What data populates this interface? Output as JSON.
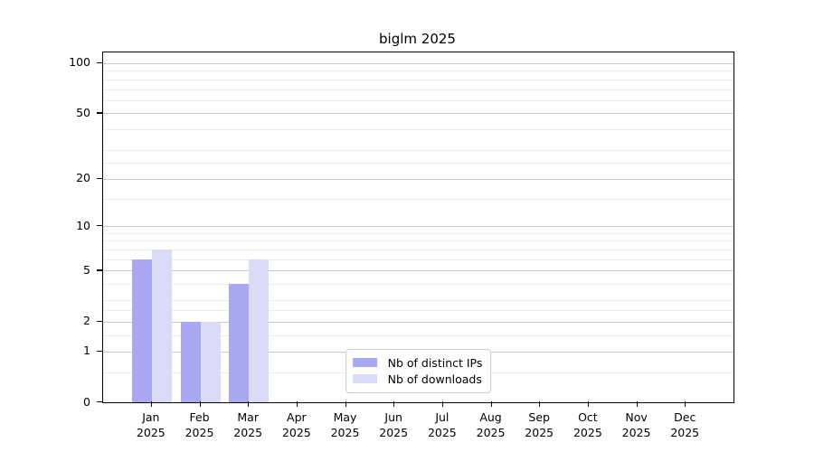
{
  "chart_data": {
    "type": "bar",
    "title": "biglm 2025",
    "scale": "log(x+1)",
    "grid": "horizontal",
    "legend_position": "bottom-center",
    "categories": [
      "Jan",
      "Feb",
      "Mar",
      "Apr",
      "May",
      "Jun",
      "Jul",
      "Aug",
      "Sep",
      "Oct",
      "Nov",
      "Dec"
    ],
    "year_label": "2025",
    "series": [
      {
        "name": "Nb of distinct IPs",
        "color": "#a8a8f2",
        "values": [
          6,
          2,
          4,
          0,
          0,
          0,
          0,
          0,
          0,
          0,
          0,
          0
        ]
      },
      {
        "name": "Nb of downloads",
        "color": "#dbdbf8",
        "values": [
          7,
          2,
          6,
          0,
          0,
          0,
          0,
          0,
          0,
          0,
          0,
          0
        ]
      }
    ],
    "y_ticks": [
      0,
      1,
      2,
      5,
      10,
      20,
      50,
      100
    ],
    "y_minor_gridlines": [
      0.5,
      1.5,
      2.5,
      3,
      4,
      6,
      7,
      8,
      9,
      15,
      25,
      30,
      40,
      60,
      70,
      80,
      90
    ],
    "ylim": [
      0,
      116
    ],
    "axis_color": "#000000",
    "major_grid_color": "#c9c9c9",
    "minor_grid_color": "#ededed"
  }
}
